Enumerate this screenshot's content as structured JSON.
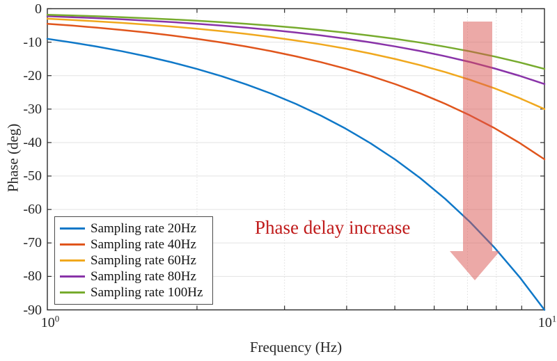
{
  "chart_data": {
    "type": "line",
    "title": "",
    "xlabel": "Frequency (Hz)",
    "ylabel": "Phase (deg)",
    "x_scale": "log",
    "xlim": [
      1,
      10
    ],
    "ylim": [
      -90,
      0
    ],
    "x_major_ticks": [
      {
        "base": "10",
        "exp": "0"
      },
      {
        "base": "10",
        "exp": "1"
      }
    ],
    "x_minor_ticks": [
      2,
      3,
      4,
      5,
      6,
      7,
      8,
      9
    ],
    "y_ticks": [
      0,
      -10,
      -20,
      -30,
      -40,
      -50,
      -60,
      -70,
      -80,
      -90
    ],
    "grid": {
      "horizontal": "solid",
      "vertical_minor": "dotted"
    },
    "legend_position": "bottom-left",
    "x": [
      1,
      1.122,
      1.259,
      1.413,
      1.585,
      1.778,
      1.995,
      2.239,
      2.512,
      2.818,
      3.162,
      3.548,
      3.981,
      4.467,
      5.012,
      5.623,
      6.31,
      7.079,
      7.943,
      8.913,
      10
    ],
    "series": [
      {
        "name": "Sampling rate 20Hz",
        "color": "#0f78c8",
        "values": [
          -9,
          -10.1,
          -11.33,
          -12.72,
          -14.26,
          -16,
          -17.96,
          -20.15,
          -22.61,
          -25.36,
          -28.46,
          -31.93,
          -35.83,
          -40.2,
          -45.11,
          -50.61,
          -56.79,
          -63.71,
          -71.49,
          -80.21,
          -90
        ]
      },
      {
        "name": "Sampling rate 40Hz",
        "color": "#e0551c",
        "values": [
          -4.5,
          -5.05,
          -5.67,
          -6.36,
          -7.13,
          -8,
          -8.98,
          -10.08,
          -11.3,
          -12.68,
          -14.23,
          -15.97,
          -17.91,
          -20.1,
          -22.55,
          -25.3,
          -28.39,
          -31.86,
          -35.74,
          -40.11,
          -45
        ]
      },
      {
        "name": "Sampling rate 60Hz",
        "color": "#f0a81e",
        "values": [
          -3,
          -3.37,
          -3.78,
          -4.24,
          -4.75,
          -5.33,
          -5.99,
          -6.72,
          -7.54,
          -8.45,
          -9.49,
          -10.64,
          -11.94,
          -13.4,
          -15.04,
          -16.87,
          -18.93,
          -21.24,
          -23.83,
          -26.74,
          -30
        ]
      },
      {
        "name": "Sampling rate 80Hz",
        "color": "#8933a8",
        "values": [
          -2.25,
          -2.53,
          -2.83,
          -3.18,
          -3.57,
          -4,
          -4.49,
          -5.04,
          -5.65,
          -6.34,
          -7.11,
          -7.98,
          -8.96,
          -10.05,
          -11.28,
          -12.65,
          -14.2,
          -15.93,
          -17.87,
          -20.05,
          -22.5
        ]
      },
      {
        "name": "Sampling rate 100Hz",
        "color": "#77ab2e",
        "values": [
          -1.8,
          -2.02,
          -2.27,
          -2.54,
          -2.85,
          -3.2,
          -3.59,
          -4.03,
          -4.52,
          -5.07,
          -5.69,
          -6.39,
          -7.17,
          -8.04,
          -9.02,
          -10.12,
          -11.36,
          -12.74,
          -14.3,
          -16.04,
          -18
        ]
      }
    ],
    "annotation": {
      "text": "Phase delay increase",
      "color": "#c01b1b"
    },
    "arrow": {
      "direction": "down",
      "color": "#d9534f",
      "opacity": 0.5
    }
  },
  "colors": {
    "axis": "#2b2b2b",
    "grid_h": "#e3e3e3",
    "grid_v": "#dcdcdc",
    "tick_text": "#262626"
  }
}
